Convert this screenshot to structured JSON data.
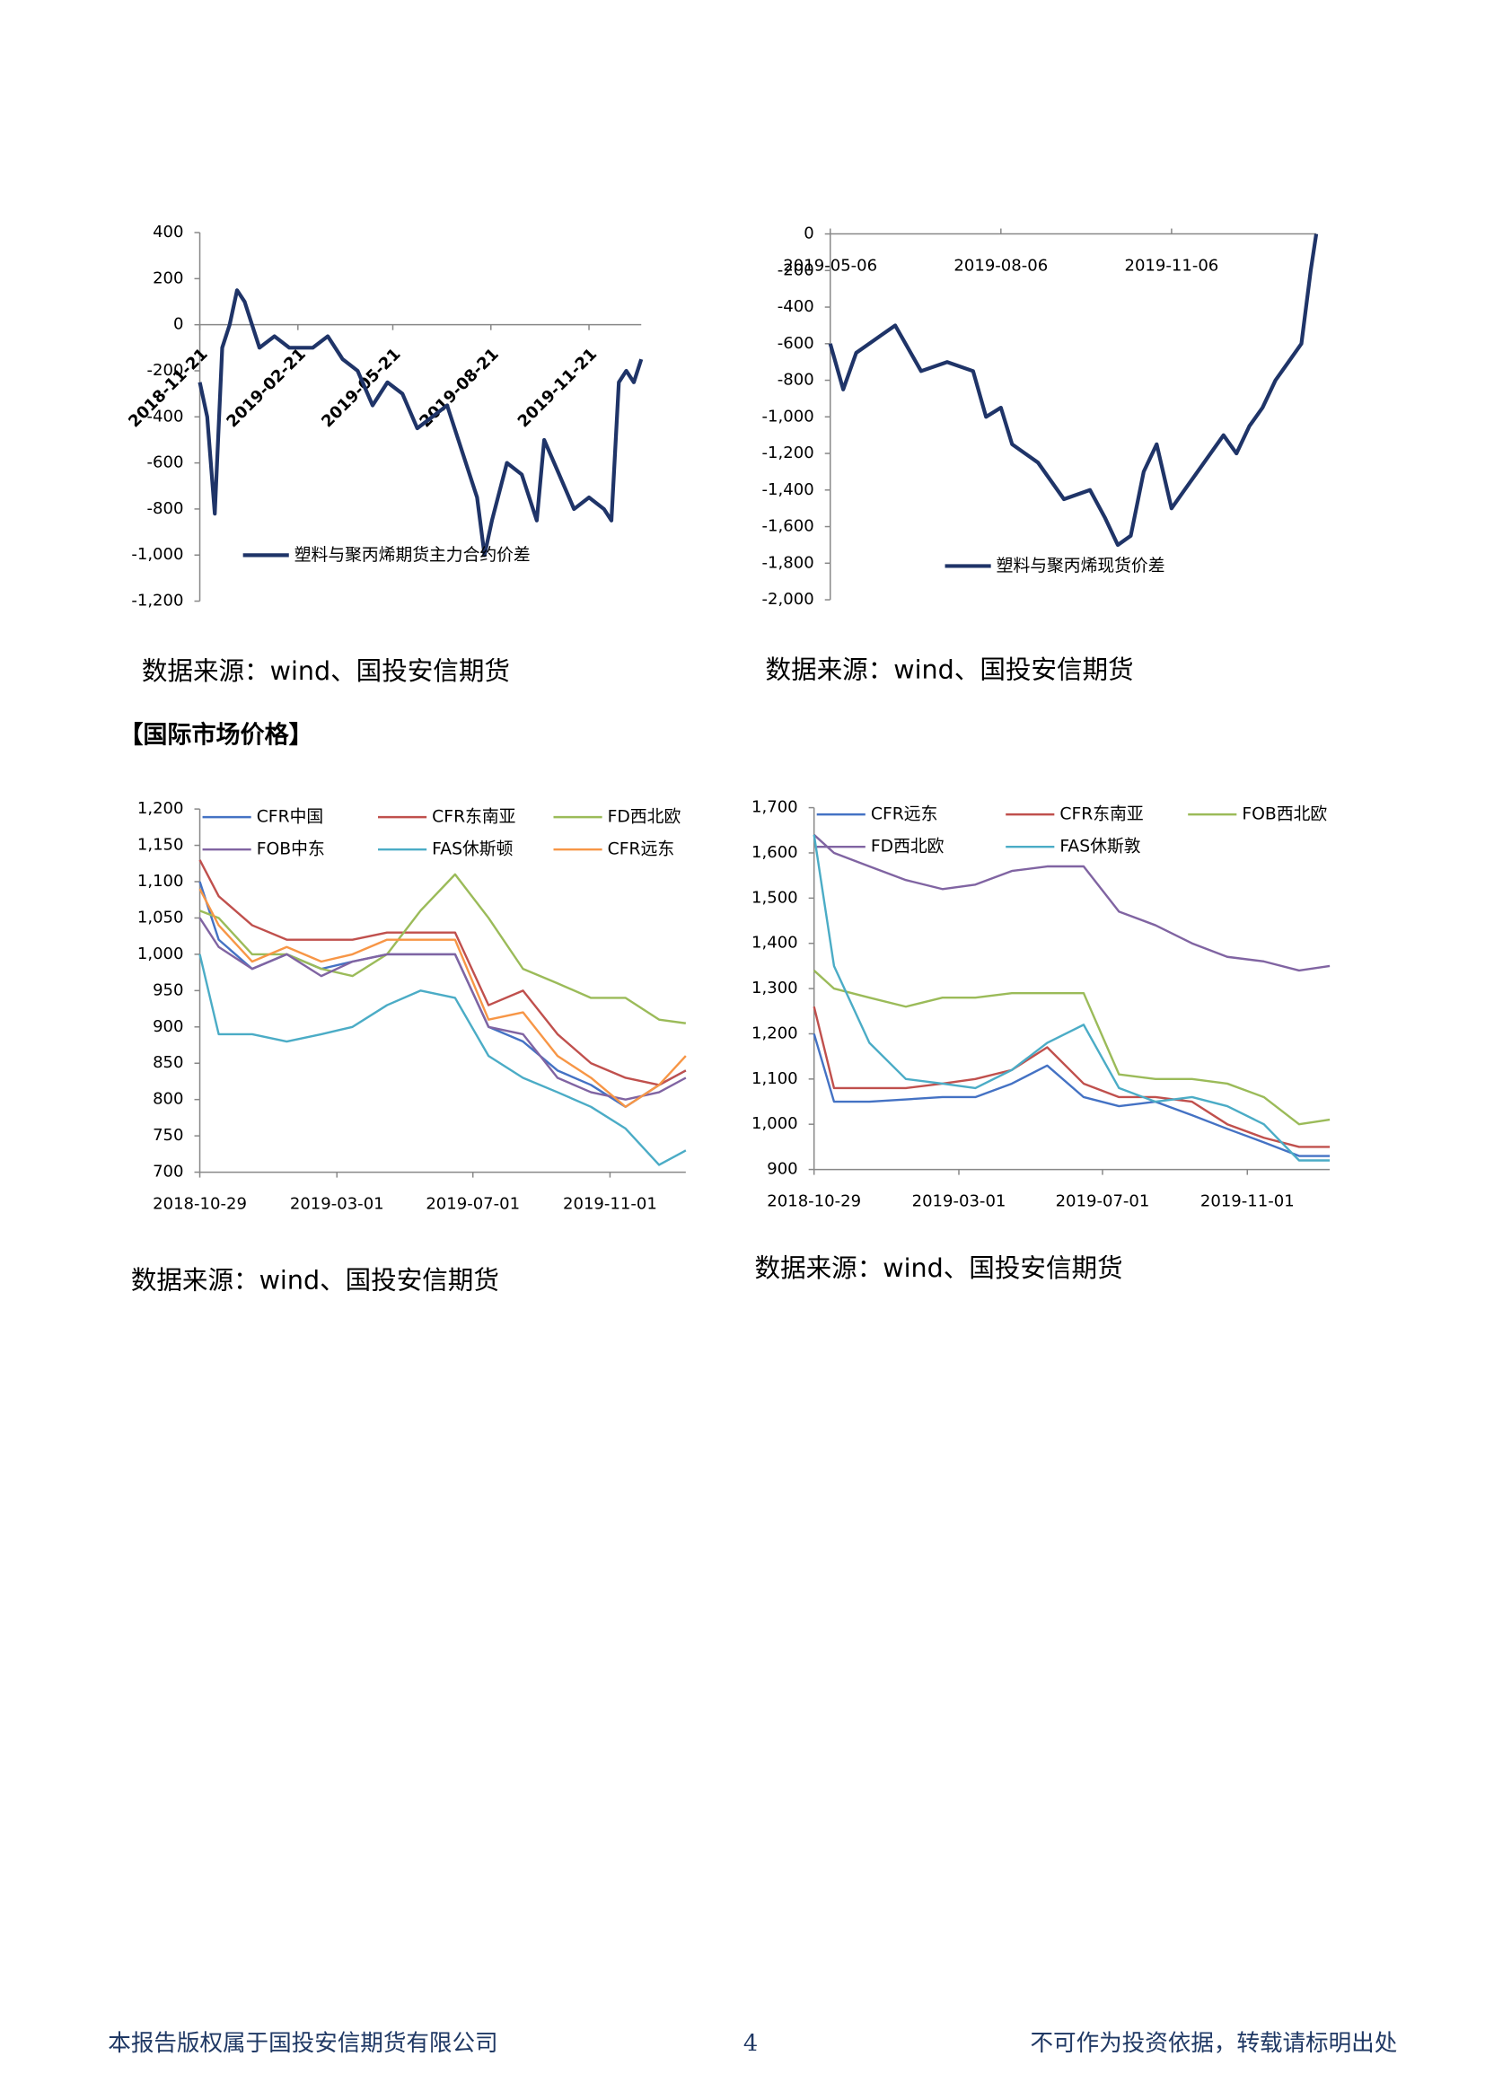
{
  "chart_data": [
    {
      "type": "line",
      "x": [
        "2018-11-21",
        "2018-11-28",
        "2018-12-05",
        "2018-12-12",
        "2018-12-19",
        "2018-12-26",
        "2019-01-02",
        "2019-01-09",
        "2019-01-16",
        "2019-01-30",
        "2019-02-13",
        "2019-02-21",
        "2019-03-07",
        "2019-03-21",
        "2019-04-04",
        "2019-04-18",
        "2019-05-02",
        "2019-05-16",
        "2019-05-30",
        "2019-06-13",
        "2019-06-27",
        "2019-07-11",
        "2019-07-25",
        "2019-08-08",
        "2019-08-15",
        "2019-08-22",
        "2019-09-05",
        "2019-09-19",
        "2019-10-03",
        "2019-10-10",
        "2019-10-24",
        "2019-11-07",
        "2019-11-21",
        "2019-12-05",
        "2019-12-12",
        "2019-12-19",
        "2019-12-26",
        "2020-01-02",
        "2020-01-09"
      ],
      "xlim": [
        "2018-11-21",
        "2020-01-09"
      ],
      "xticks": [
        "2018-11-21",
        "2019-02-21",
        "2019-05-21",
        "2019-08-21",
        "2019-11-21"
      ],
      "ylim": [
        -1200,
        400
      ],
      "yticks": [
        400,
        200,
        0,
        -200,
        -400,
        -600,
        -800,
        {
          "value": -1000,
          "label": "-1,000"
        },
        {
          "value": -1200,
          "label": "-1,200"
        }
      ],
      "series": [
        {
          "name": "塑料与聚丙烯期货主力合约价差",
          "color": "#1f3468",
          "values": [
            -250,
            -400,
            -820,
            -100,
            0,
            150,
            100,
            0,
            -100,
            -50,
            -100,
            -100,
            -100,
            -50,
            -150,
            -200,
            -350,
            -250,
            -300,
            -450,
            -400,
            -350,
            -550,
            -750,
            -1000,
            -850,
            -600,
            -650,
            -850,
            -500,
            -650,
            -800,
            -750,
            -800,
            -850,
            -250,
            -200,
            -250,
            -150
          ]
        }
      ]
    },
    {
      "type": "line",
      "x": [
        "2019-05-06",
        "2019-05-13",
        "2019-05-20",
        "2019-06-03",
        "2019-06-10",
        "2019-06-24",
        "2019-07-08",
        "2019-07-22",
        "2019-07-29",
        "2019-08-06",
        "2019-08-12",
        "2019-08-26",
        "2019-09-09",
        "2019-09-23",
        "2019-10-01",
        "2019-10-08",
        "2019-10-15",
        "2019-10-22",
        "2019-10-29",
        "2019-11-06",
        "2019-11-13",
        "2019-11-20",
        "2019-12-04",
        "2019-12-11",
        "2019-12-18",
        "2019-12-25",
        "2020-01-01",
        "2020-01-08",
        "2020-01-15",
        "2020-01-20",
        "2020-01-23"
      ],
      "xlim": [
        "2019-05-06",
        "2020-01-23"
      ],
      "xticks": [
        "2019-05-06",
        "2019-08-06",
        "2019-11-06"
      ],
      "ylim": [
        -2000,
        0
      ],
      "yticks": [
        0,
        -200,
        -400,
        -600,
        -800,
        {
          "value": -1000,
          "label": "-1,000"
        },
        {
          "value": -1200,
          "label": "-1,200"
        },
        {
          "value": -1400,
          "label": "-1,400"
        },
        {
          "value": -1600,
          "label": "-1,600"
        },
        {
          "value": -1800,
          "label": "-1,800"
        },
        {
          "value": -2000,
          "label": "-2,000"
        }
      ],
      "series": [
        {
          "name": "塑料与聚丙烯现货价差",
          "color": "#1f3468",
          "values": [
            -600,
            -850,
            -650,
            -550,
            -500,
            -750,
            -700,
            -750,
            -1000,
            -950,
            -1150,
            -1250,
            -1450,
            -1400,
            -1550,
            -1700,
            -1650,
            -1300,
            -1150,
            -1500,
            -1400,
            -1300,
            -1100,
            -1200,
            -1050,
            -950,
            -800,
            -700,
            -600,
            -200,
            0
          ]
        }
      ]
    },
    {
      "type": "line",
      "x": [
        "2018-10-29",
        "2018-11-15",
        "2018-12-15",
        "2019-01-15",
        "2019-02-15",
        "2019-03-15",
        "2019-04-15",
        "2019-05-15",
        "2019-06-15",
        "2019-07-15",
        "2019-08-15",
        "2019-09-15",
        "2019-10-15",
        "2019-11-15",
        "2019-12-15",
        "2020-01-08"
      ],
      "xlim": [
        "2018-10-29",
        "2020-01-08"
      ],
      "xticks": [
        "2018-10-29",
        "2019-03-01",
        "2019-07-01",
        "2019-11-01"
      ],
      "ylim": [
        700,
        1200
      ],
      "yticks": [
        700,
        750,
        800,
        850,
        900,
        950,
        {
          "value": 1000,
          "label": "1,000"
        },
        {
          "value": 1050,
          "label": "1,050"
        },
        {
          "value": 1100,
          "label": "1,100"
        },
        {
          "value": 1150,
          "label": "1,150"
        },
        {
          "value": 1200,
          "label": "1,200"
        }
      ],
      "series": [
        {
          "name": "CFR中国",
          "color": "#4472c4",
          "values": [
            1100,
            1020,
            980,
            1000,
            980,
            990,
            1000,
            1000,
            1000,
            900,
            880,
            840,
            820,
            790,
            820,
            840
          ]
        },
        {
          "name": "CFR东南亚",
          "color": "#c0504d",
          "values": [
            1130,
            1080,
            1040,
            1020,
            1020,
            1020,
            1030,
            1030,
            1030,
            930,
            950,
            890,
            850,
            830,
            820,
            840
          ]
        },
        {
          "name": "FD西北欧",
          "color": "#9bbb59",
          "values": [
            1060,
            1050,
            1000,
            1000,
            980,
            970,
            1000,
            1060,
            1110,
            1050,
            980,
            960,
            940,
            940,
            910,
            905
          ]
        },
        {
          "name": "FOB中东",
          "color": "#8064a2",
          "values": [
            1050,
            1010,
            980,
            1000,
            970,
            990,
            1000,
            1000,
            1000,
            900,
            890,
            830,
            810,
            800,
            810,
            830
          ]
        },
        {
          "name": "FAS休斯顿",
          "color": "#4bacc6",
          "values": [
            1000,
            890,
            890,
            880,
            890,
            900,
            930,
            950,
            940,
            860,
            830,
            810,
            790,
            760,
            710,
            730
          ]
        },
        {
          "name": "CFR远东",
          "color": "#f79646",
          "values": [
            1090,
            1040,
            990,
            1010,
            990,
            1000,
            1020,
            1020,
            1020,
            910,
            920,
            860,
            830,
            790,
            820,
            860
          ]
        }
      ]
    },
    {
      "type": "line",
      "x": [
        "2018-10-29",
        "2018-11-15",
        "2018-12-15",
        "2019-01-15",
        "2019-02-15",
        "2019-03-15",
        "2019-04-15",
        "2019-05-15",
        "2019-06-15",
        "2019-07-15",
        "2019-08-15",
        "2019-09-15",
        "2019-10-15",
        "2019-11-15",
        "2019-12-15",
        "2020-01-10"
      ],
      "xlim": [
        "2018-10-29",
        "2020-01-10"
      ],
      "xticks": [
        "2018-10-29",
        "2019-03-01",
        "2019-07-01",
        "2019-11-01"
      ],
      "ylim": [
        900,
        1700
      ],
      "yticks": [
        900,
        {
          "value": 1000,
          "label": "1,000"
        },
        {
          "value": 1100,
          "label": "1,100"
        },
        {
          "value": 1200,
          "label": "1,200"
        },
        {
          "value": 1300,
          "label": "1,300"
        },
        {
          "value": 1400,
          "label": "1,400"
        },
        {
          "value": 1500,
          "label": "1,500"
        },
        {
          "value": 1600,
          "label": "1,600"
        },
        {
          "value": 1700,
          "label": "1,700"
        }
      ],
      "series": [
        {
          "name": "CFR远东",
          "color": "#4472c4",
          "values": [
            1200,
            1050,
            1050,
            1055,
            1060,
            1060,
            1090,
            1130,
            1060,
            1040,
            1050,
            1020,
            990,
            960,
            930,
            930
          ]
        },
        {
          "name": "CFR东南亚",
          "color": "#c0504d",
          "values": [
            1260,
            1080,
            1080,
            1080,
            1090,
            1100,
            1120,
            1170,
            1090,
            1060,
            1060,
            1050,
            1000,
            970,
            950,
            950
          ]
        },
        {
          "name": "FOB西北欧",
          "color": "#9bbb59",
          "values": [
            1340,
            1300,
            1280,
            1260,
            1280,
            1280,
            1290,
            1290,
            1290,
            1110,
            1100,
            1100,
            1090,
            1060,
            1000,
            1010
          ]
        },
        {
          "name": "FD西北欧",
          "color": "#8064a2",
          "values": [
            1640,
            1600,
            1570,
            1540,
            1520,
            1530,
            1560,
            1570,
            1570,
            1470,
            1440,
            1400,
            1370,
            1360,
            1340,
            1350
          ]
        },
        {
          "name": "FAS休斯敦",
          "color": "#4bacc6",
          "values": [
            1640,
            1350,
            1180,
            1100,
            1090,
            1080,
            1120,
            1180,
            1220,
            1080,
            1050,
            1060,
            1040,
            1000,
            920,
            920
          ]
        }
      ]
    }
  ],
  "captions": [
    "数据来源：wind、国投安信期货",
    "数据来源：wind、国投安信期货",
    "数据来源：wind、国投安信期货",
    "数据来源：wind、国投安信期货"
  ],
  "section_heading": "【国际市场价格】",
  "footer": {
    "left": "本报告版权属于国投安信期货有限公司",
    "page": 4,
    "right": "不可作为投资依据，转载请标明出处"
  }
}
